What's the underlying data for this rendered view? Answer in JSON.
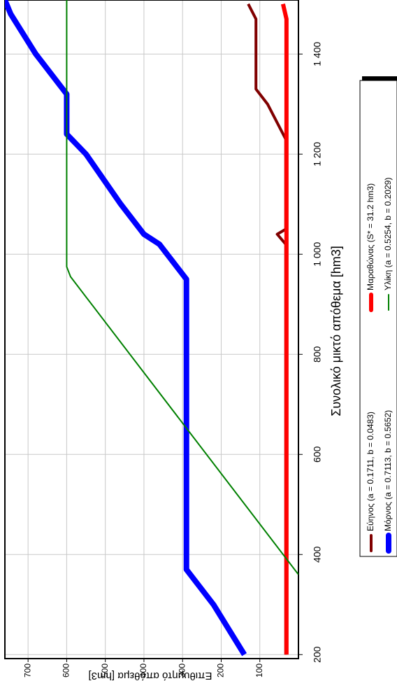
{
  "chart_data": {
    "type": "line",
    "x_label": "Συνολικό μικτό απόθεμα [hm3]",
    "y_label": "Επιθυμητό απόθεμα [hm3]",
    "xlim": [
      192,
      1508
    ],
    "ylim": [
      0,
      760
    ],
    "xticks": [
      200,
      400,
      600,
      800,
      {
        "value": 1000,
        "label": "1 000"
      },
      {
        "value": 1200,
        "label": "1 200"
      },
      {
        "value": 1400,
        "label": "1 400"
      }
    ],
    "yticks": [
      100,
      200,
      300,
      400,
      500,
      600,
      700
    ],
    "grid": true,
    "series": [
      {
        "name": "Εύηνος (a = 0.1711, b = 0.0483)",
        "color": "#800000",
        "width": 4,
        "x": [
          200,
          1020,
          1040,
          1050,
          1230,
          1300,
          1330,
          1470,
          1500
        ],
        "values": [
          33,
          33,
          55,
          33,
          33,
          80,
          110,
          110,
          130
        ]
      },
      {
        "name": "Μαραθώνας (S* = 31.2 hm3)",
        "color": "#ff0000",
        "width": 6,
        "x": [
          200,
          1470,
          1500
        ],
        "values": [
          31,
          31,
          40
        ]
      },
      {
        "name": "Μόρνος (a = 0.7113, b = 0.5652)",
        "color": "#0000ff",
        "width": 8,
        "x": [
          200,
          300,
          370,
          950,
          1020,
          1040,
          1100,
          1200,
          1240,
          1320,
          1400,
          1480,
          1508
        ],
        "values": [
          140,
          220,
          290,
          290,
          360,
          400,
          460,
          550,
          600,
          600,
          680,
          745,
          760
        ]
      },
      {
        "name": "Υλίκη (a = 0.5254, b = 0.2029)",
        "color": "#008000",
        "width": 2,
        "x": [
          360,
          955,
          975,
          1508
        ],
        "values": [
          0,
          590,
          600,
          600
        ]
      }
    ]
  }
}
